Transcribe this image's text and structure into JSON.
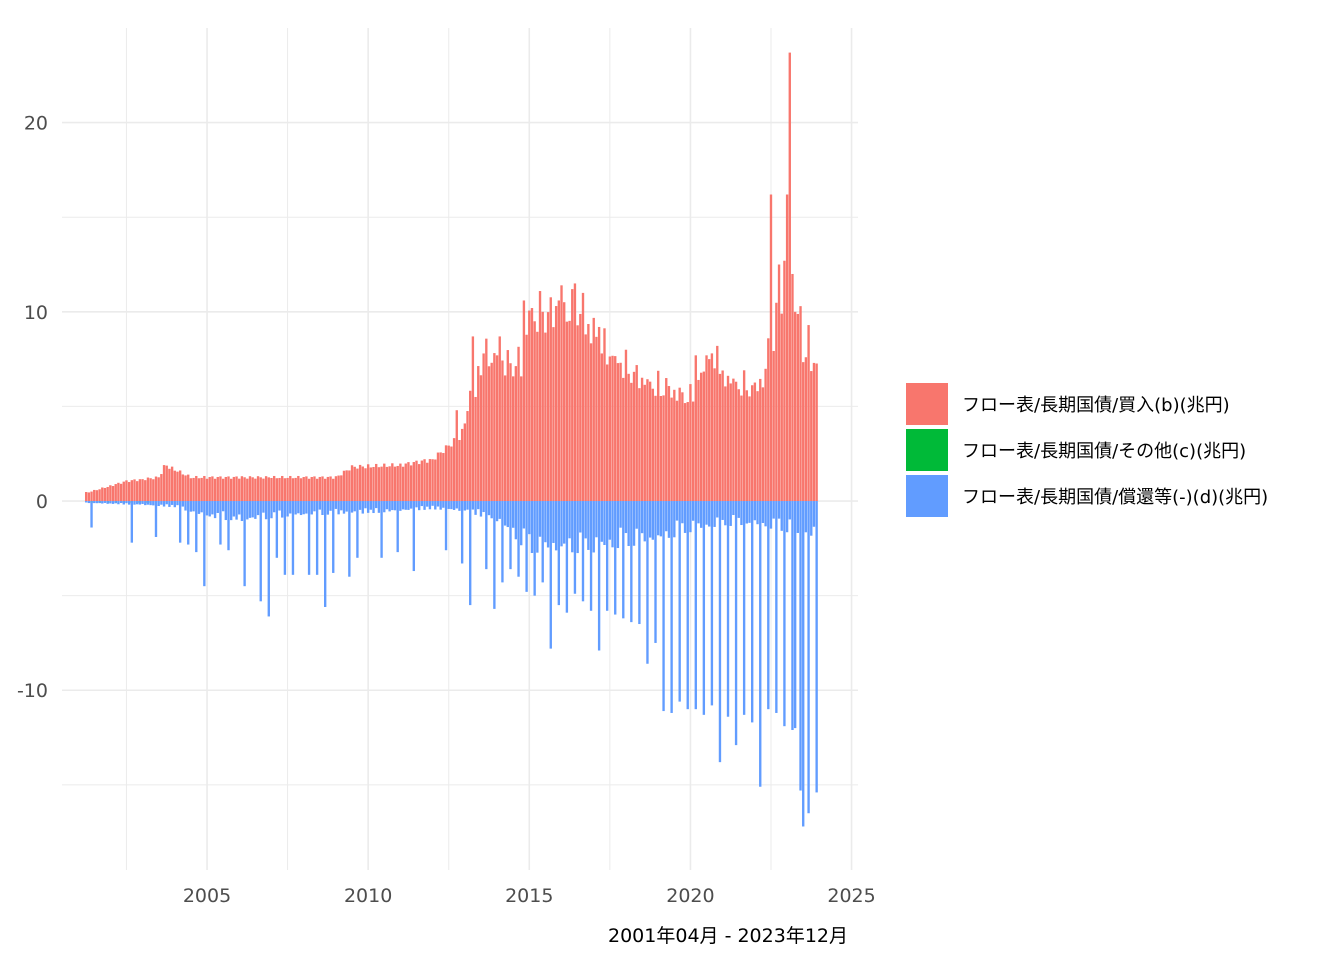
{
  "chart_data": {
    "type": "bar",
    "stacked": true,
    "xlabel": "2001年04月 - 2023年12月",
    "ylabel": "",
    "title": "",
    "xlim": [
      2000.5,
      2025.2
    ],
    "ylim": [
      -19.5,
      25.0
    ],
    "x_ticks": [
      2005,
      2010,
      2015,
      2020,
      2025
    ],
    "x_tick_labels": [
      "2005",
      "2010",
      "2015",
      "2020",
      "2025"
    ],
    "y_ticks": [
      -10,
      0,
      10,
      20
    ],
    "y_tick_labels": [
      "-10",
      "0",
      "10",
      "20"
    ],
    "grid": true,
    "legend_position": "right",
    "series_colors": {
      "purchase": "#F8766D",
      "other": "#00BA38",
      "redemption": "#619CFF"
    },
    "legend": [
      {
        "key": "purchase",
        "label": "フロー表/長期国債/買入(b)(兆円)"
      },
      {
        "key": "other",
        "label": "フロー表/長期国債/その他(c)(兆円)"
      },
      {
        "key": "redemption",
        "label": "フロー表/長期国債/償還等(-)(d)(兆円)"
      }
    ],
    "anchors": {
      "purchase": [
        [
          2001.29,
          0.45
        ],
        [
          2002.0,
          0.8
        ],
        [
          2002.5,
          1.05
        ],
        [
          2003.5,
          1.25
        ],
        [
          2003.71,
          1.9
        ],
        [
          2004.5,
          1.25
        ],
        [
          2009.0,
          1.25
        ],
        [
          2009.5,
          1.8
        ],
        [
          2011.0,
          1.9
        ],
        [
          2012.0,
          2.2
        ],
        [
          2012.9,
          3.5
        ],
        [
          2013.3,
          6.5
        ],
        [
          2013.8,
          7.5
        ],
        [
          2014.3,
          7.0
        ],
        [
          2014.8,
          7.0
        ],
        [
          2015.0,
          9.5
        ],
        [
          2015.5,
          9.4
        ],
        [
          2016.0,
          10.0
        ],
        [
          2016.5,
          9.5
        ],
        [
          2017.0,
          8.5
        ],
        [
          2017.5,
          7.5
        ],
        [
          2018.0,
          6.8
        ],
        [
          2018.5,
          6.2
        ],
        [
          2019.0,
          5.8
        ],
        [
          2019.6,
          5.5
        ],
        [
          2020.0,
          5.3
        ],
        [
          2020.5,
          7.0
        ],
        [
          2021.0,
          6.5
        ],
        [
          2021.5,
          5.9
        ],
        [
          2022.0,
          5.8
        ],
        [
          2022.4,
          6.5
        ],
        [
          2022.8,
          10.0
        ],
        [
          2023.1,
          11.0
        ],
        [
          2023.4,
          8.0
        ],
        [
          2023.9,
          7.0
        ]
      ],
      "redemption": [
        [
          2001.29,
          -0.1
        ],
        [
          2003.0,
          -0.2
        ],
        [
          2004.0,
          -0.3
        ],
        [
          2005.0,
          -0.8
        ],
        [
          2006.0,
          -1.0
        ],
        [
          2008.0,
          -0.7
        ],
        [
          2010.0,
          -0.6
        ],
        [
          2012.0,
          -0.4
        ],
        [
          2013.0,
          -0.5
        ],
        [
          2014.0,
          -1.0
        ],
        [
          2015.0,
          -2.5
        ],
        [
          2016.0,
          -2.5
        ],
        [
          2017.0,
          -2.5
        ],
        [
          2018.0,
          -2.2
        ],
        [
          2019.0,
          -2.0
        ],
        [
          2020.0,
          -1.5
        ],
        [
          2021.0,
          -1.2
        ],
        [
          2022.0,
          -1.2
        ],
        [
          2023.0,
          -1.5
        ],
        [
          2023.9,
          -1.8
        ]
      ]
    },
    "spikes": {
      "purchase": [
        [
          "2003-09",
          1.9
        ],
        [
          "2012-10",
          4.8
        ],
        [
          "2013-04",
          8.7
        ],
        [
          "2013-05",
          5.5
        ],
        [
          "2013-08",
          7.8
        ],
        [
          "2014-02",
          8.7
        ],
        [
          "2014-11",
          10.6
        ],
        [
          "2015-02",
          10.2
        ],
        [
          "2015-06",
          10.0
        ],
        [
          "2015-12",
          10.6
        ],
        [
          "2016-01",
          11.4
        ],
        [
          "2016-05",
          11.2
        ],
        [
          "2016-06",
          11.5
        ],
        [
          "2016-09",
          11.0
        ],
        [
          "2017-03",
          9.2
        ],
        [
          "2017-04",
          7.8
        ],
        [
          "2019-04",
          6.5
        ],
        [
          "2020-03",
          7.7
        ],
        [
          "2020-07",
          7.7
        ],
        [
          "2020-08",
          7.5
        ],
        [
          "2020-11",
          8.2
        ],
        [
          "2021-01",
          6.9
        ],
        [
          "2022-06",
          8.6
        ],
        [
          "2022-07",
          16.2
        ],
        [
          "2022-10",
          12.5
        ],
        [
          "2022-12",
          12.7
        ],
        [
          "2023-01",
          16.2
        ],
        [
          "2023-02",
          23.7
        ],
        [
          "2023-03",
          12.0
        ],
        [
          "2023-04",
          10.0
        ],
        [
          "2023-06",
          10.3
        ],
        [
          "2023-08",
          7.6
        ],
        [
          "2023-09",
          9.3
        ],
        [
          "2023-11",
          7.3
        ]
      ],
      "redemption": [
        [
          "2001-06",
          -1.4
        ],
        [
          "2002-09",
          -2.2
        ],
        [
          "2003-06",
          -1.9
        ],
        [
          "2004-03",
          -2.2
        ],
        [
          "2004-06",
          -2.3
        ],
        [
          "2004-09",
          -2.7
        ],
        [
          "2004-12",
          -4.5
        ],
        [
          "2005-06",
          -2.3
        ],
        [
          "2005-09",
          -2.6
        ],
        [
          "2006-03",
          -4.5
        ],
        [
          "2006-09",
          -5.3
        ],
        [
          "2006-12",
          -6.1
        ],
        [
          "2007-03",
          -3.0
        ],
        [
          "2007-06",
          -3.9
        ],
        [
          "2007-09",
          -3.9
        ],
        [
          "2008-03",
          -3.9
        ],
        [
          "2008-06",
          -3.9
        ],
        [
          "2008-09",
          -5.6
        ],
        [
          "2008-12",
          -3.8
        ],
        [
          "2009-06",
          -4.0
        ],
        [
          "2009-09",
          -3.0
        ],
        [
          "2010-06",
          -3.0
        ],
        [
          "2010-12",
          -2.7
        ],
        [
          "2011-06",
          -3.7
        ],
        [
          "2012-06",
          -2.6
        ],
        [
          "2012-12",
          -3.3
        ],
        [
          "2013-03",
          -5.5
        ],
        [
          "2013-09",
          -3.6
        ],
        [
          "2013-12",
          -5.7
        ],
        [
          "2014-03",
          -4.3
        ],
        [
          "2014-06",
          -3.6
        ],
        [
          "2014-09",
          -4.0
        ],
        [
          "2014-12",
          -4.8
        ],
        [
          "2015-03",
          -5.0
        ],
        [
          "2015-06",
          -4.3
        ],
        [
          "2015-09",
          -7.8
        ],
        [
          "2015-12",
          -5.5
        ],
        [
          "2016-03",
          -5.9
        ],
        [
          "2016-06",
          -4.9
        ],
        [
          "2016-09",
          -5.3
        ],
        [
          "2016-12",
          -5.8
        ],
        [
          "2017-03",
          -7.9
        ],
        [
          "2017-06",
          -5.8
        ],
        [
          "2017-09",
          -6.0
        ],
        [
          "2017-12",
          -6.2
        ],
        [
          "2018-03",
          -6.4
        ],
        [
          "2018-06",
          -6.5
        ],
        [
          "2018-09",
          -8.6
        ],
        [
          "2018-12",
          -7.5
        ],
        [
          "2019-03",
          -11.1
        ],
        [
          "2019-06",
          -11.2
        ],
        [
          "2019-09",
          -10.6
        ],
        [
          "2019-12",
          -11.0
        ],
        [
          "2020-03",
          -11.0
        ],
        [
          "2020-06",
          -11.3
        ],
        [
          "2020-09",
          -10.8
        ],
        [
          "2020-12",
          -13.8
        ],
        [
          "2021-03",
          -11.4
        ],
        [
          "2021-06",
          -12.9
        ],
        [
          "2021-09",
          -11.3
        ],
        [
          "2021-12",
          -11.7
        ],
        [
          "2022-03",
          -15.1
        ],
        [
          "2022-06",
          -11.0
        ],
        [
          "2022-09",
          -11.2
        ],
        [
          "2022-12",
          -11.9
        ],
        [
          "2023-03",
          -12.1
        ],
        [
          "2023-04",
          -12.0
        ],
        [
          "2023-06",
          -15.3
        ],
        [
          "2023-07",
          -17.2
        ],
        [
          "2023-09",
          -16.5
        ],
        [
          "2023-12",
          -15.4
        ]
      ]
    },
    "other_series_note_value": 0.0
  }
}
